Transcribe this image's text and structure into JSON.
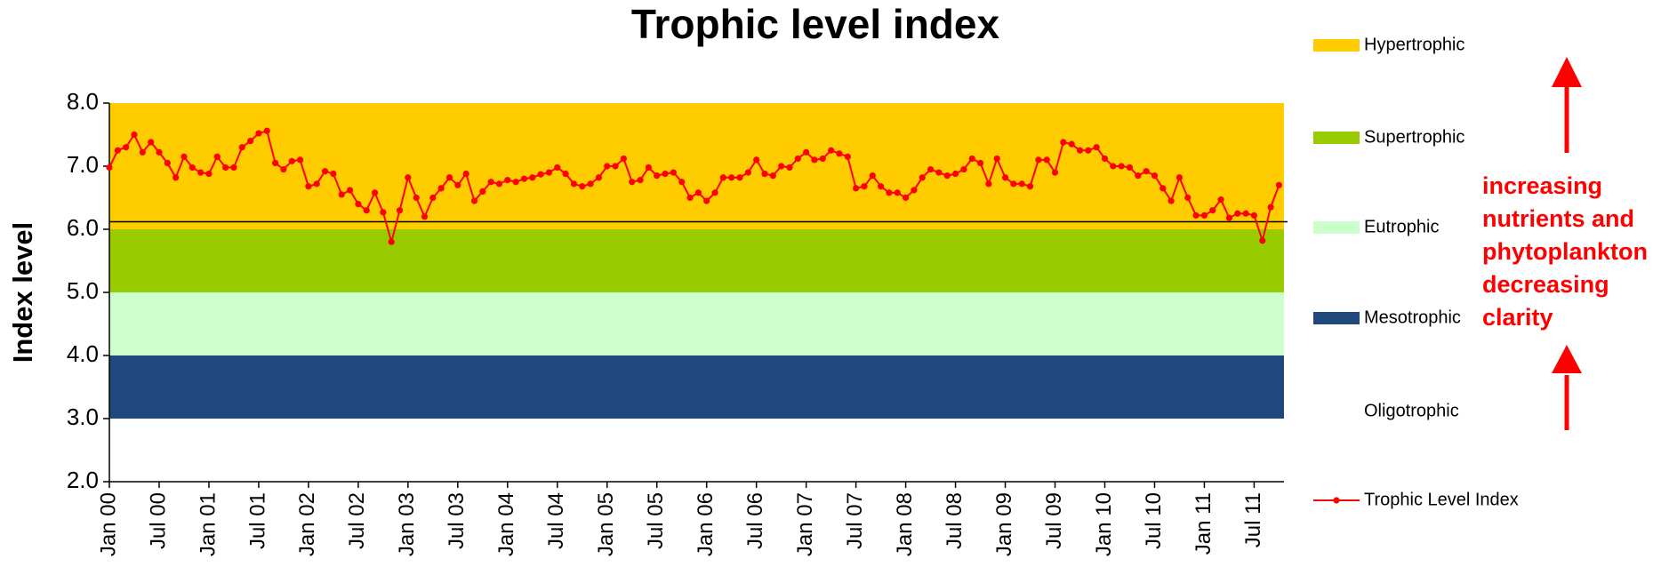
{
  "chart_data": {
    "type": "line",
    "title": "Trophic level index",
    "y_label": "Index level",
    "categories": [
      "Jan 00",
      null,
      null,
      null,
      null,
      null,
      "Jul 00",
      null,
      null,
      null,
      null,
      null,
      "Jan 01",
      null,
      null,
      null,
      null,
      null,
      "Jul 01",
      null,
      null,
      null,
      null,
      null,
      "Jan 02",
      null,
      null,
      null,
      null,
      null,
      "Jul 02",
      null,
      null,
      null,
      null,
      null,
      "Jan 03",
      null,
      null,
      null,
      null,
      null,
      "Jul 03",
      null,
      null,
      null,
      null,
      null,
      "Jan 04",
      null,
      null,
      null,
      null,
      null,
      "Jul 04",
      null,
      null,
      null,
      null,
      null,
      "Jan 05",
      null,
      null,
      null,
      null,
      null,
      "Jul 05",
      null,
      null,
      null,
      null,
      null,
      "Jan 06",
      null,
      null,
      null,
      null,
      null,
      "Jul 06",
      null,
      null,
      null,
      null,
      null,
      "Jan 07",
      null,
      null,
      null,
      null,
      null,
      "Jul 07",
      null,
      null,
      null,
      null,
      null,
      "Jan 08",
      null,
      null,
      null,
      null,
      null,
      "Jul 08",
      null,
      null,
      null,
      null,
      null,
      "Jan 09",
      null,
      null,
      null,
      null,
      null,
      "Jul 09",
      null,
      null,
      null,
      null,
      null,
      "Jan 10",
      null,
      null,
      null,
      null,
      null,
      "Jul 10",
      null,
      null,
      null,
      null,
      null,
      "Jan 11",
      null,
      null,
      null,
      null,
      null,
      "Jul 11",
      null,
      null,
      null
    ],
    "series": [
      {
        "name": "Trophic Level Index",
        "color": "#ff0000",
        "values": [
          6.98,
          7.25,
          7.3,
          7.5,
          7.22,
          7.38,
          7.22,
          7.05,
          6.82,
          7.15,
          6.98,
          6.9,
          6.88,
          7.15,
          6.98,
          6.98,
          7.3,
          7.4,
          7.52,
          7.56,
          7.05,
          6.95,
          7.08,
          7.1,
          6.68,
          6.72,
          6.92,
          6.88,
          6.55,
          6.62,
          6.4,
          6.3,
          6.58,
          6.27,
          5.8,
          6.3,
          6.82,
          6.5,
          6.2,
          6.5,
          6.65,
          6.82,
          6.7,
          6.88,
          6.45,
          6.6,
          6.75,
          6.72,
          6.78,
          6.75,
          6.8,
          6.82,
          6.87,
          6.9,
          6.98,
          6.88,
          6.72,
          6.68,
          6.72,
          6.82,
          7.0,
          7.0,
          7.12,
          6.75,
          6.78,
          6.98,
          6.85,
          6.88,
          6.9,
          6.75,
          6.5,
          6.58,
          6.45,
          6.58,
          6.82,
          6.82,
          6.82,
          6.9,
          7.1,
          6.88,
          6.85,
          7.0,
          6.98,
          7.12,
          7.22,
          7.1,
          7.12,
          7.25,
          7.2,
          7.15,
          6.65,
          6.68,
          6.85,
          6.68,
          6.58,
          6.58,
          6.5,
          6.62,
          6.82,
          6.95,
          6.9,
          6.85,
          6.88,
          6.95,
          7.12,
          7.05,
          6.72,
          7.12,
          6.82,
          6.72,
          6.72,
          6.68,
          7.1,
          7.1,
          6.9,
          7.38,
          7.35,
          7.25,
          7.25,
          7.3,
          7.12,
          7.0,
          7.0,
          6.98,
          6.85,
          6.92,
          6.85,
          6.65,
          6.45,
          6.82,
          6.5,
          6.22,
          6.22,
          6.3,
          6.47,
          6.18,
          6.25,
          6.25,
          6.22,
          5.82,
          6.35,
          6.7
        ]
      }
    ],
    "bands": [
      {
        "name": "Hypertrophic",
        "color": "#ffcc00",
        "range": [
          6,
          8
        ]
      },
      {
        "name": "Supertrophic",
        "color": "#99cc00",
        "range": [
          5,
          6
        ]
      },
      {
        "name": "Eutrophic",
        "color": "#ccffcc",
        "range": [
          4,
          5
        ]
      },
      {
        "name": "Mesotrophic",
        "color": "#1f497d",
        "range": [
          3,
          4
        ]
      },
      {
        "name": "Oligotrophic",
        "color": "#ffffff",
        "range": [
          2,
          3
        ]
      }
    ],
    "reference_line": 6.12,
    "ylim": [
      2,
      8
    ],
    "yticks": [
      {
        "value": 2,
        "label": "2.0"
      },
      {
        "value": 3,
        "label": "3.0"
      },
      {
        "value": 4,
        "label": "4.0"
      },
      {
        "value": 5,
        "label": "5.0"
      },
      {
        "value": 6,
        "label": "6.0"
      },
      {
        "value": 7,
        "label": "7.0"
      },
      {
        "value": 8,
        "label": "8.0"
      }
    ],
    "annotation": [
      "increasing",
      "nutrients and",
      "phytoplankton",
      "decreasing",
      "clarity"
    ],
    "annotation_color": "#ff0000"
  }
}
